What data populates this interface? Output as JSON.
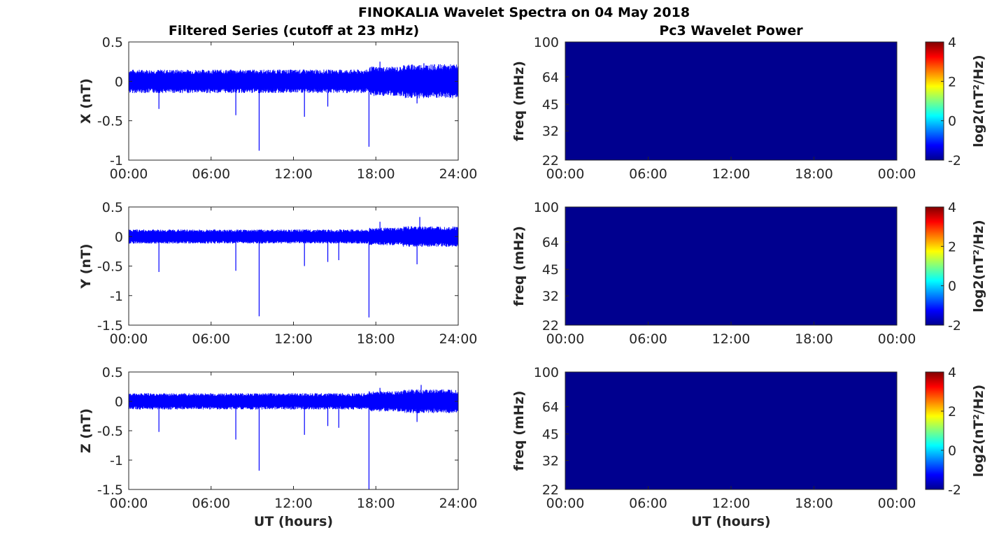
{
  "figure": {
    "title": "FINOKALIA Wavelet Spectra on 04 May 2018",
    "left_title": "Filtered Series (cutoff at 23 mHz)",
    "right_title": "Pc3 Wavelet Power",
    "xlabel": "UT (hours)"
  },
  "colors": {
    "series": "#0000ff",
    "spectrum_fill": "#00008f",
    "axis": "#262626"
  },
  "chart_data": [
    {
      "type": "line",
      "component": "X",
      "ylabel": "X (nT)",
      "xlim": [
        0,
        24
      ],
      "ylim": [
        -1,
        0.5
      ],
      "xticks": [
        "00:00",
        "06:00",
        "12:00",
        "18:00",
        "24:00"
      ],
      "yticks": [
        0.5,
        0,
        -0.5,
        -1
      ],
      "noise_band": [
        -0.15,
        0.15
      ],
      "spikes": [
        {
          "x": 2.2,
          "y": -0.35
        },
        {
          "x": 7.8,
          "y": -0.43
        },
        {
          "x": 9.5,
          "y": -0.88
        },
        {
          "x": 12.8,
          "y": -0.45
        },
        {
          "x": 14.5,
          "y": -0.32
        },
        {
          "x": 17.5,
          "y": -0.83
        },
        {
          "x": 21.0,
          "y": -0.28
        }
      ],
      "peaks": [
        {
          "x": 18.3,
          "y": 0.25
        },
        {
          "x": 21.5,
          "y": 0.23
        }
      ]
    },
    {
      "type": "line",
      "component": "Y",
      "ylabel": "Y (nT)",
      "xlim": [
        0,
        24
      ],
      "ylim": [
        -1.5,
        0.5
      ],
      "xticks": [
        "00:00",
        "06:00",
        "12:00",
        "18:00",
        "24:00"
      ],
      "yticks": [
        0.5,
        0,
        -0.5,
        -1,
        -1.5
      ],
      "noise_band": [
        -0.12,
        0.12
      ],
      "spikes": [
        {
          "x": 2.2,
          "y": -0.6
        },
        {
          "x": 7.8,
          "y": -0.58
        },
        {
          "x": 9.5,
          "y": -1.35
        },
        {
          "x": 12.8,
          "y": -0.5
        },
        {
          "x": 14.5,
          "y": -0.43
        },
        {
          "x": 15.3,
          "y": -0.4
        },
        {
          "x": 17.5,
          "y": -1.37
        },
        {
          "x": 21.0,
          "y": -0.47
        }
      ],
      "peaks": [
        {
          "x": 18.3,
          "y": 0.25
        },
        {
          "x": 21.2,
          "y": 0.33
        }
      ]
    },
    {
      "type": "line",
      "component": "Z",
      "ylabel": "Z (nT)",
      "xlim": [
        0,
        24
      ],
      "ylim": [
        -1.5,
        0.5
      ],
      "xticks": [
        "00:00",
        "06:00",
        "12:00",
        "18:00",
        "24:00"
      ],
      "yticks": [
        0.5,
        0,
        -0.5,
        -1,
        -1.5
      ],
      "noise_band": [
        -0.14,
        0.14
      ],
      "spikes": [
        {
          "x": 2.2,
          "y": -0.52
        },
        {
          "x": 7.8,
          "y": -0.65
        },
        {
          "x": 9.5,
          "y": -1.18
        },
        {
          "x": 12.8,
          "y": -0.57
        },
        {
          "x": 14.5,
          "y": -0.42
        },
        {
          "x": 15.3,
          "y": -0.45
        },
        {
          "x": 17.5,
          "y": -1.5
        },
        {
          "x": 21.0,
          "y": -0.35
        }
      ],
      "peaks": [
        {
          "x": 18.3,
          "y": 0.23
        },
        {
          "x": 21.3,
          "y": 0.28
        }
      ]
    },
    {
      "type": "heatmap",
      "component": "X",
      "ylabel": "freq (mHz)",
      "xticks": [
        "00:00",
        "06:00",
        "12:00",
        "18:00",
        "00:00"
      ],
      "yticks": [
        "100",
        "64",
        "45",
        "32",
        "22"
      ],
      "yscale": "log",
      "ylim": [
        22,
        100
      ],
      "values": "uniform -2 (minimum of colour scale)",
      "colorbar": {
        "label": "log2(nT²/Hz)",
        "ticks": [
          4,
          2,
          0,
          -2
        ],
        "range": [
          -2,
          4
        ],
        "colormap": "jet"
      }
    },
    {
      "type": "heatmap",
      "component": "Y",
      "ylabel": "freq (mHz)",
      "xticks": [
        "00:00",
        "06:00",
        "12:00",
        "18:00",
        "00:00"
      ],
      "yticks": [
        "100",
        "64",
        "45",
        "32",
        "22"
      ],
      "yscale": "log",
      "ylim": [
        22,
        100
      ],
      "values": "uniform -2 (minimum of colour scale)",
      "colorbar": {
        "label": "log2(nT²/Hz)",
        "ticks": [
          4,
          2,
          0,
          -2
        ],
        "range": [
          -2,
          4
        ],
        "colormap": "jet"
      }
    },
    {
      "type": "heatmap",
      "component": "Z",
      "ylabel": "freq (mHz)",
      "xticks": [
        "00:00",
        "06:00",
        "12:00",
        "18:00",
        "00:00"
      ],
      "yticks": [
        "100",
        "64",
        "45",
        "32",
        "22"
      ],
      "yscale": "log",
      "ylim": [
        22,
        100
      ],
      "values": "uniform -2 (minimum of colour scale)",
      "colorbar": {
        "label": "log2(nT²/Hz)",
        "ticks": [
          4,
          2,
          0,
          -2
        ],
        "range": [
          -2,
          4
        ],
        "colormap": "jet"
      }
    }
  ]
}
